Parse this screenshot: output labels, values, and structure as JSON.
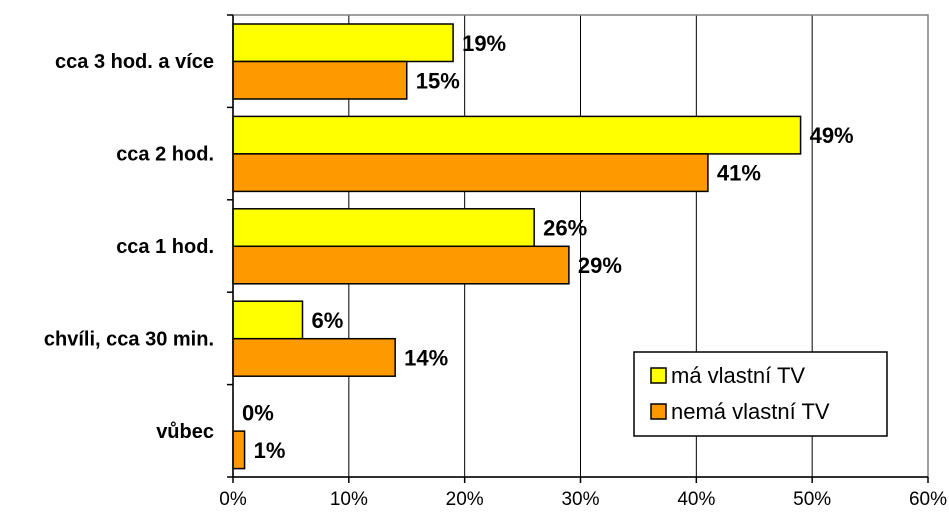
{
  "chart_data": {
    "type": "bar",
    "orientation": "horizontal",
    "title": "",
    "xlabel": "",
    "ylabel": "",
    "categories": [
      "cca 3 hod. a více",
      "cca 2 hod.",
      "cca 1 hod.",
      "chvíli, cca 30 min.",
      "vůbec"
    ],
    "series": [
      {
        "name": "má vlastní TV",
        "values": [
          19,
          49,
          26,
          6,
          0
        ],
        "labels": [
          "19%",
          "49%",
          "26%",
          "6%",
          "0%"
        ],
        "color": "#ffff00"
      },
      {
        "name": "nemá vlastní TV",
        "values": [
          15,
          41,
          29,
          14,
          1
        ],
        "labels": [
          "15%",
          "41%",
          "29%",
          "14%",
          "1%"
        ],
        "color": "#ff9900"
      }
    ],
    "xlim": [
      0,
      60
    ],
    "x_ticks": [
      "0%",
      "10%",
      "20%",
      "30%",
      "40%",
      "50%",
      "60%"
    ],
    "grid": "vertical",
    "legend_position": "bottom-right",
    "colors": {
      "plot_border": "#808080",
      "gridline": "#000000",
      "bar_stroke": "#000000"
    }
  }
}
